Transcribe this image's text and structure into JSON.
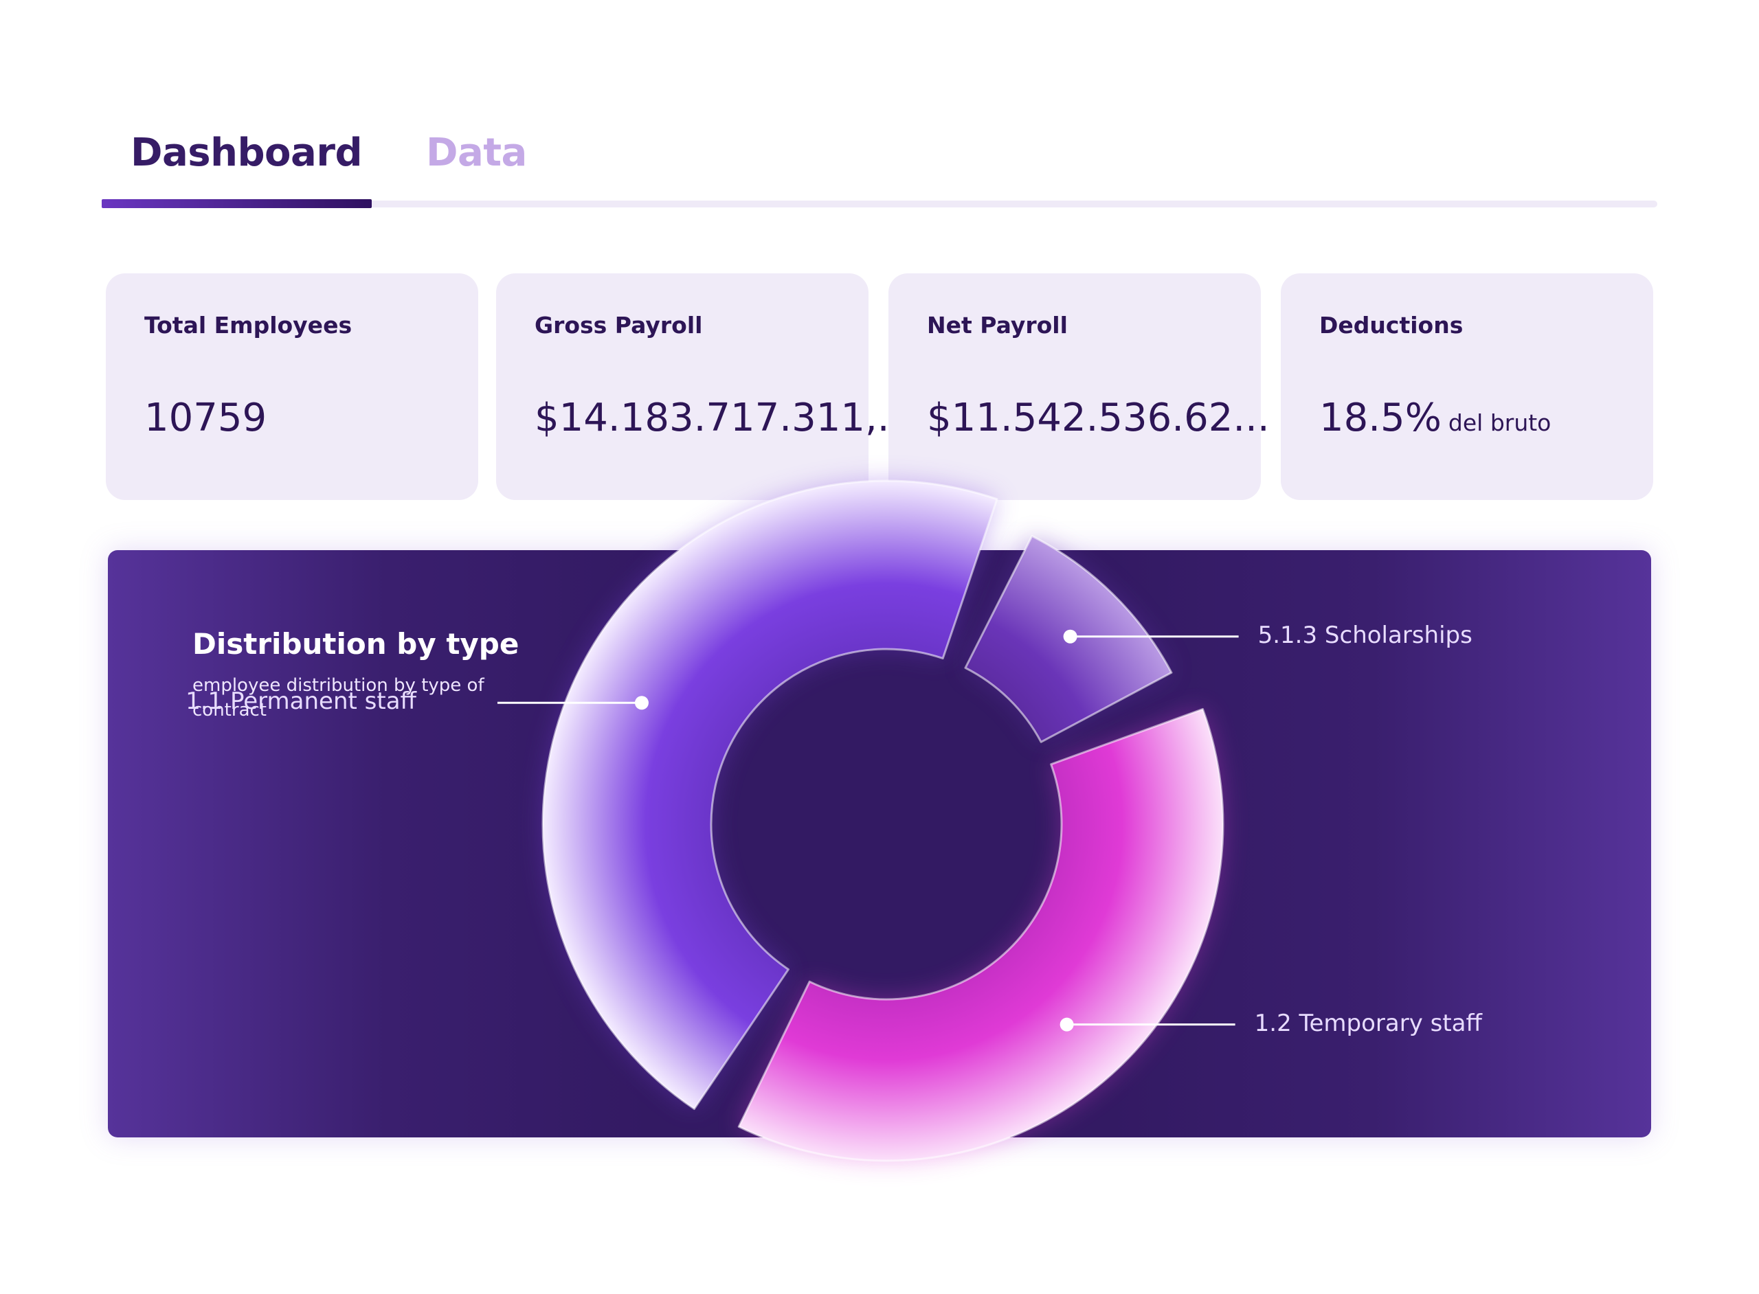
{
  "tabs": [
    {
      "label": "Dashboard",
      "active": true
    },
    {
      "label": "Data",
      "active": false
    }
  ],
  "cards": [
    {
      "label": "Total Employees",
      "value": "10759",
      "suffix": ""
    },
    {
      "label": "Gross Payroll",
      "value": "$14.183.717.311,...",
      "suffix": ""
    },
    {
      "label": "Net Payroll",
      "value": "$11.542.536.62...",
      "suffix": ""
    },
    {
      "label": "Deductions",
      "value": "18.5%",
      "suffix": "del bruto"
    }
  ],
  "distribution": {
    "title": "Distribution by type",
    "subtitle": "employee distribution by type of contract"
  },
  "chart_data": {
    "type": "pie",
    "title": "Distribution by type",
    "categories": [
      "1.1 Permanent staff",
      "5.1.3 Scholarships",
      "1.2 Temporary staff"
    ],
    "values": [
      48,
      12,
      40
    ],
    "colors": [
      "#7a3fe0",
      "#6a35b8",
      "#e03ad6"
    ]
  },
  "colors": {
    "accent_dark": "#361c66",
    "accent_light": "#c4a9e6",
    "card_bg": "#f0ebf8",
    "panel_bg": "#331a63"
  }
}
